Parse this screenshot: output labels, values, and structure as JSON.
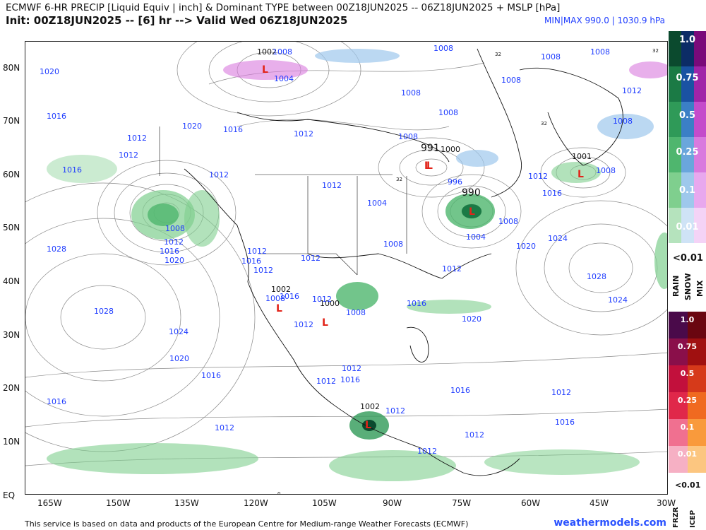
{
  "header": {
    "title": "ECMWF 6-HR PRECIP [Liquid Equiv | inch] & Dominant TYPE between 00Z18JUN2025 -- 06Z18JUN2025 + MSLP [hPa]",
    "init": "Init: 00Z18JUN2025 -- [6] hr --> Valid Wed 06Z18JUN2025",
    "minmax": "MIN|MAX 990.0 | 1030.9 hPa"
  },
  "axes": {
    "lat_labels": [
      "80N",
      "70N",
      "60N",
      "50N",
      "40N",
      "30N",
      "20N",
      "10N",
      "EQ"
    ],
    "lon_labels": [
      "165W",
      "150W",
      "135W",
      "120W",
      "105W",
      "90W",
      "75W",
      "60W",
      "45W",
      "30W"
    ]
  },
  "legend": {
    "upper_values": [
      "1.0",
      "0.75",
      "0.5",
      "0.25",
      "0.1",
      "0.01"
    ],
    "upper_small": "<0.01",
    "upper_types": [
      "RAIN",
      "SNOW",
      "MIX"
    ],
    "lower_values": [
      "1.0",
      "0.75",
      "0.5",
      "0.25",
      "0.1",
      "0.01"
    ],
    "lower_small": "<0.01",
    "lower_types": [
      "FRZR",
      "ICEP"
    ],
    "rain_colors": [
      "#0b4a2e",
      "#1b7a45",
      "#2f9a58",
      "#4fb66e",
      "#7fcf8e",
      "#b5e3bd"
    ],
    "snow_colors": [
      "#0c2c66",
      "#1a52a3",
      "#3b7fc6",
      "#6aa6dc",
      "#9ec8ec",
      "#cfe3f6"
    ],
    "mix_colors": [
      "#7a0a7a",
      "#a024a8",
      "#c44ccb",
      "#d97ade",
      "#e8a8ee",
      "#f4d3f6"
    ],
    "frzr_colors": [
      "#4a0a4a",
      "#8a0f4a",
      "#c2103c",
      "#e0284a",
      "#f07090",
      "#f6b0c4"
    ],
    "icep_colors": [
      "#6a0610",
      "#a01010",
      "#d63a1a",
      "#f06a20",
      "#f99a3c",
      "#fcc680"
    ]
  },
  "pressure_labels": [
    "1002",
    "1008",
    "1008",
    "1008",
    "1004",
    "1008",
    "1008",
    "1008",
    "1008",
    "1012",
    "1020",
    "1016",
    "1012",
    "1016",
    "1020",
    "1016",
    "1012",
    "1012",
    "1008",
    "1008",
    "991",
    "1000",
    "996",
    "990",
    "1004",
    "1012",
    "1008",
    "1012",
    "1008",
    "1004",
    "1001",
    "1008",
    "1012",
    "1016",
    "1024",
    "1020",
    "1028",
    "1024",
    "1008",
    "1012",
    "1016",
    "1020",
    "1028",
    "1012",
    "1016",
    "1012",
    "1012",
    "1008",
    "1002",
    "1016",
    "1000",
    "1012",
    "1008",
    "1028",
    "1024",
    "1020",
    "1016",
    "1012",
    "1012",
    "1016",
    "1020",
    "1016",
    "1012",
    "1016",
    "1002",
    "1012",
    "1012",
    "1012",
    "1016",
    "1012",
    "1016",
    "1012",
    "1012",
    "0",
    "32",
    "32",
    "32",
    "32"
  ],
  "lows": [
    "L",
    "L",
    "L",
    "L",
    "L",
    "L",
    "L",
    "L"
  ],
  "footer": {
    "credit": "This service is based on data and products of the European Centre for Medium-range Weather Forecasts (ECMWF)",
    "site": "weathermodels.com"
  }
}
